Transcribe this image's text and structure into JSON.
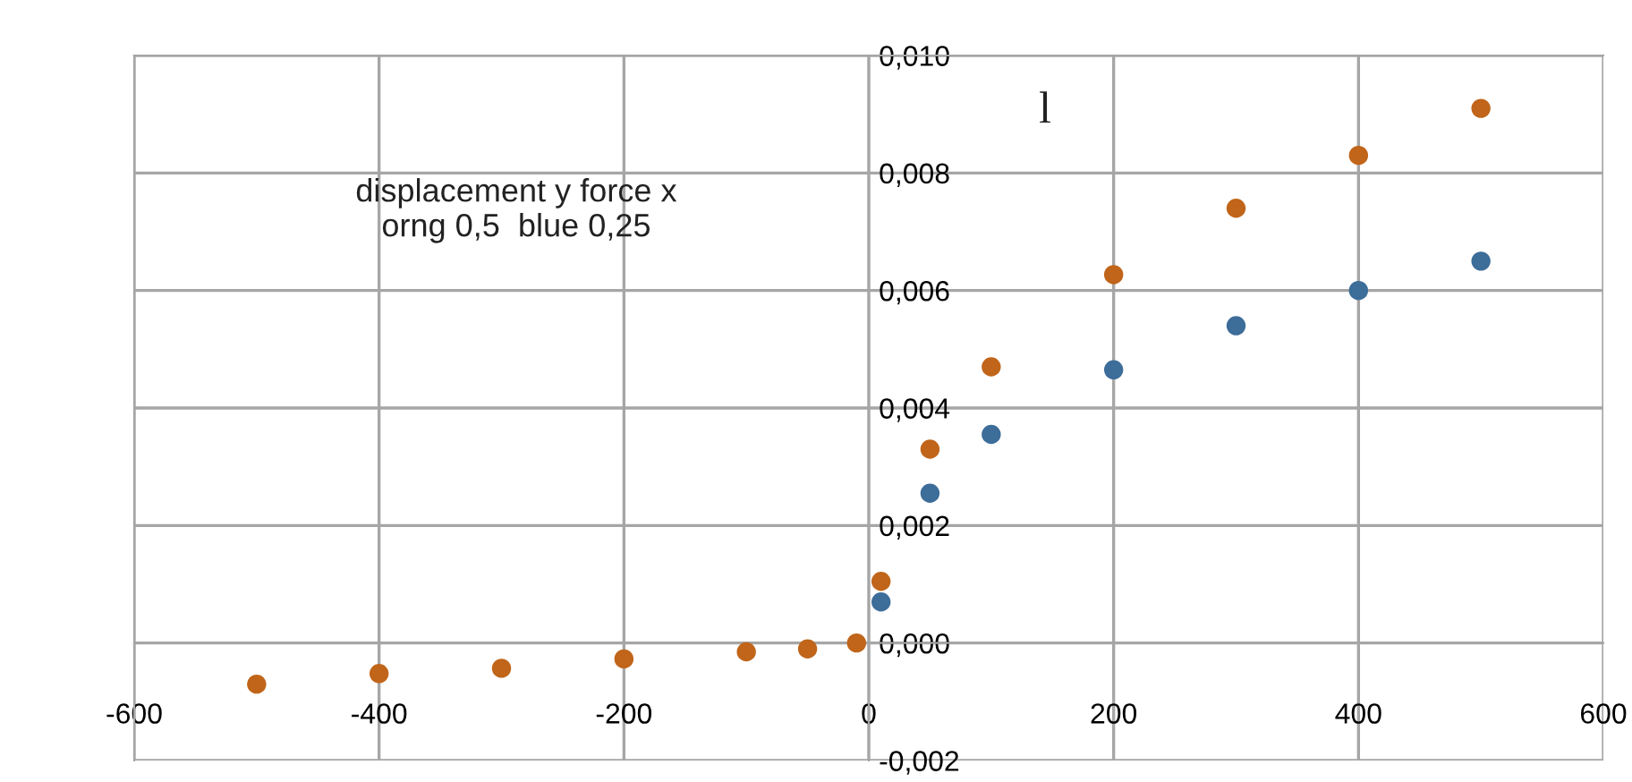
{
  "chart_data": {
    "type": "scatter",
    "annotations": [
      "displacement y force x\norng 0,5  blue 0,25",
      "l"
    ],
    "series": [
      {
        "color": "#c0651a",
        "x": [
          -500,
          -400,
          -300,
          -200,
          -100,
          -50,
          -10,
          10,
          50,
          100,
          200,
          300,
          400,
          500
        ],
        "values": [
          -0.0007,
          -0.00052,
          -0.00043,
          -0.00027,
          -0.00015,
          -0.0001,
          0.0,
          0.00105,
          0.0033,
          0.0047,
          0.00627,
          0.0074,
          0.0083,
          0.0091
        ]
      },
      {
        "color": "#3d6d99",
        "x": [
          10,
          50,
          100,
          200,
          300,
          400,
          500
        ],
        "values": [
          0.0007,
          0.00255,
          0.00355,
          0.00465,
          0.0054,
          0.006,
          0.0065
        ]
      }
    ],
    "xlim": [
      -600,
      600
    ],
    "xticks": [
      -600,
      -400,
      -200,
      0,
      200,
      400,
      600
    ],
    "ylim": [
      -0.002,
      0.01
    ],
    "yticks": [
      {
        "value": -0.002,
        "label": "-0,002"
      },
      {
        "value": 0,
        "label": "0,000"
      },
      {
        "value": 0.002,
        "label": "0,002"
      },
      {
        "value": 0.004,
        "label": "0,004"
      },
      {
        "value": 0.006,
        "label": "0,006"
      },
      {
        "value": 0.008,
        "label": "0,008"
      },
      {
        "value": 0.01,
        "label": "0,010"
      }
    ],
    "grid": true,
    "marker": "circle",
    "legend": false
  }
}
